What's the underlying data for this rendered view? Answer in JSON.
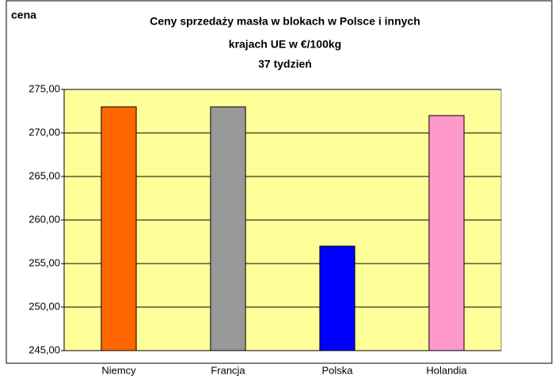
{
  "chart_data": {
    "type": "bar",
    "title": [
      "Ceny sprzedaży masła w blokach w Polsce i  innych",
      "krajach UE w €/100kg",
      "37 tydzień"
    ],
    "y_label": "cena",
    "categories": [
      "Niemcy",
      "Francja",
      "Polska",
      "Holandia"
    ],
    "values": [
      273,
      273,
      257,
      272
    ],
    "colors": [
      "#ff6600",
      "#999999",
      "#0000ff",
      "#ff99cc"
    ],
    "ylim": [
      245,
      275
    ],
    "yticks": [
      {
        "value": 245,
        "label": "245,00"
      },
      {
        "value": 250,
        "label": "250,00"
      },
      {
        "value": 255,
        "label": "255,00"
      },
      {
        "value": 260,
        "label": "260,00"
      },
      {
        "value": 265,
        "label": "265,00"
      },
      {
        "value": 270,
        "label": "270,00"
      },
      {
        "value": 275,
        "label": "275,00"
      }
    ],
    "grid": true,
    "plot_background": "#ffff99"
  }
}
